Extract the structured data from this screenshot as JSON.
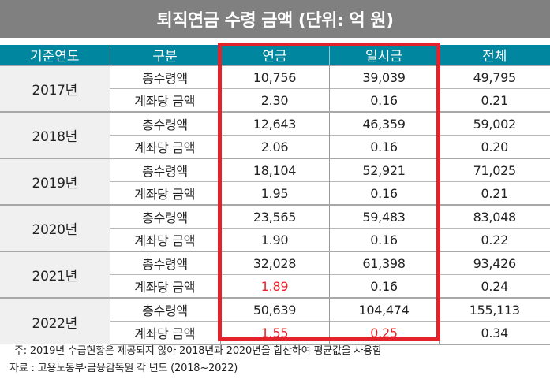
{
  "title": "퇴직연금 수령 금액  (단위: 억 원)",
  "table": {
    "headers": [
      "기준연도",
      "구분",
      "연금",
      "일시금",
      "전체"
    ],
    "row_labels": [
      "총수령액",
      "계좌당 금액"
    ],
    "years": [
      {
        "year": "2017년",
        "total": [
          "10,756",
          "39,039",
          "49,795"
        ],
        "per_account": [
          "2.30",
          "0.16",
          "0.21"
        ]
      },
      {
        "year": "2018년",
        "total": [
          "12,643",
          "46,359",
          "59,002"
        ],
        "per_account": [
          "2.06",
          "0.16",
          "0.20"
        ]
      },
      {
        "year": "2019년",
        "total": [
          "18,104",
          "52,921",
          "71,025"
        ],
        "per_account": [
          "1.95",
          "0.16",
          "0.21"
        ]
      },
      {
        "year": "2020년",
        "total": [
          "23,565",
          "59,483",
          "83,048"
        ],
        "per_account": [
          "1.90",
          "0.16",
          "0.22"
        ]
      },
      {
        "year": "2021년",
        "total": [
          "32,028",
          "61,398",
          "93,426"
        ],
        "per_account": [
          "1.89",
          "0.16",
          "0.24"
        ]
      },
      {
        "year": "2022년",
        "total": [
          "50,639",
          "104,474",
          "155,113"
        ],
        "per_account": [
          "1.55",
          "0.25",
          "0.34"
        ]
      }
    ],
    "highlighted_cells": [
      "2021년 연금 계좌당 금액",
      "2022년 연금 계좌당 금액",
      "2022년 일시금 계좌당 금액"
    ]
  },
  "colors": {
    "title_bg": "#808080",
    "header_bg": "#00879f",
    "year_bg": "#f0f0f0",
    "highlight_box": "#e4222b",
    "highlight_text": "#e8202a"
  },
  "notes": {
    "note": "주: 2019년  수급현황은 제공되지 않아 2018년과 2020년을 합산하여 평균값을 사용함",
    "source": "자료 : 고용노동부·금융감독원 각 년도 (2018~2022)"
  }
}
